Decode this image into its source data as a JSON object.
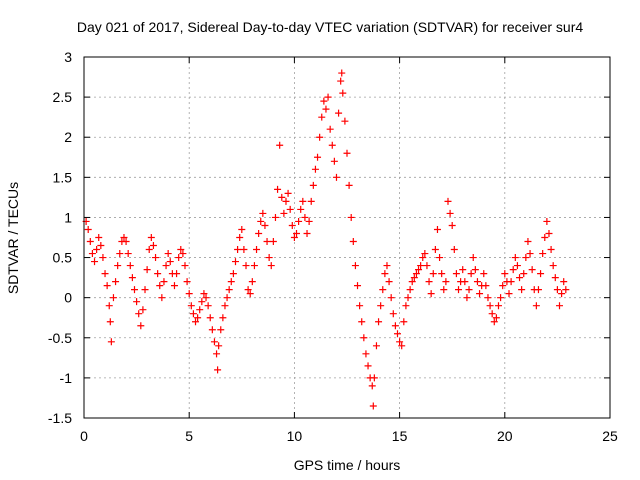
{
  "chart_data": {
    "type": "scatter",
    "title": "Day 021 of 2017, Sidereal Day-to-day VTEC variation (SDTVAR) for receiver sur4",
    "xlabel": "GPS time / hours",
    "ylabel": "SDTVAR / TECUs",
    "xlim": [
      0,
      25
    ],
    "ylim": [
      -1.5,
      3
    ],
    "xticks": [
      0,
      5,
      10,
      15,
      20,
      25
    ],
    "yticks": [
      -1.5,
      -1,
      -0.5,
      0,
      0.5,
      1,
      1.5,
      2,
      2.5,
      3
    ],
    "xtick_labels": [
      "0",
      "5",
      "10",
      "15",
      "20",
      "25"
    ],
    "ytick_labels": [
      "-1.5",
      "-1",
      "-0.5",
      "0",
      "0.5",
      "1",
      "1.5",
      "2",
      "2.5",
      "3"
    ],
    "grid": true,
    "marker": "+",
    "color": "#ff0000",
    "series": [
      {
        "name": "SDTVAR",
        "points": [
          [
            0.1,
            0.95
          ],
          [
            0.2,
            0.85
          ],
          [
            0.3,
            0.7
          ],
          [
            0.4,
            0.55
          ],
          [
            0.5,
            0.45
          ],
          [
            0.6,
            0.6
          ],
          [
            0.7,
            0.75
          ],
          [
            0.8,
            0.65
          ],
          [
            0.9,
            0.5
          ],
          [
            1.0,
            0.3
          ],
          [
            1.1,
            0.15
          ],
          [
            1.2,
            -0.1
          ],
          [
            1.25,
            -0.3
          ],
          [
            1.3,
            -0.55
          ],
          [
            1.4,
            0.0
          ],
          [
            1.5,
            0.2
          ],
          [
            1.6,
            0.4
          ],
          [
            1.7,
            0.55
          ],
          [
            1.8,
            0.7
          ],
          [
            1.9,
            0.75
          ],
          [
            2.0,
            0.7
          ],
          [
            2.1,
            0.55
          ],
          [
            2.2,
            0.4
          ],
          [
            2.3,
            0.25
          ],
          [
            2.4,
            0.1
          ],
          [
            2.5,
            -0.05
          ],
          [
            2.6,
            -0.2
          ],
          [
            2.7,
            -0.35
          ],
          [
            2.8,
            -0.15
          ],
          [
            2.9,
            0.1
          ],
          [
            3.0,
            0.35
          ],
          [
            3.1,
            0.6
          ],
          [
            3.2,
            0.75
          ],
          [
            3.3,
            0.65
          ],
          [
            3.4,
            0.5
          ],
          [
            3.5,
            0.3
          ],
          [
            3.6,
            0.15
          ],
          [
            3.7,
            0.0
          ],
          [
            3.8,
            0.2
          ],
          [
            3.9,
            0.4
          ],
          [
            4.0,
            0.55
          ],
          [
            4.1,
            0.45
          ],
          [
            4.2,
            0.3
          ],
          [
            4.3,
            0.15
          ],
          [
            4.4,
            0.3
          ],
          [
            4.5,
            0.5
          ],
          [
            4.6,
            0.6
          ],
          [
            4.7,
            0.55
          ],
          [
            4.8,
            0.4
          ],
          [
            4.9,
            0.2
          ],
          [
            5.0,
            0.05
          ],
          [
            5.1,
            -0.1
          ],
          [
            5.2,
            -0.2
          ],
          [
            5.3,
            -0.3
          ],
          [
            5.4,
            -0.25
          ],
          [
            5.5,
            -0.15
          ],
          [
            5.6,
            -0.05
          ],
          [
            5.7,
            0.05
          ],
          [
            5.8,
            0.0
          ],
          [
            5.9,
            -0.1
          ],
          [
            6.0,
            -0.25
          ],
          [
            6.1,
            -0.4
          ],
          [
            6.2,
            -0.55
          ],
          [
            6.3,
            -0.7
          ],
          [
            6.35,
            -0.9
          ],
          [
            6.4,
            -0.6
          ],
          [
            6.5,
            -0.4
          ],
          [
            6.6,
            -0.25
          ],
          [
            6.7,
            -0.1
          ],
          [
            6.8,
            0.0
          ],
          [
            6.9,
            0.1
          ],
          [
            7.0,
            0.2
          ],
          [
            7.1,
            0.3
          ],
          [
            7.2,
            0.45
          ],
          [
            7.3,
            0.6
          ],
          [
            7.4,
            0.75
          ],
          [
            7.5,
            0.85
          ],
          [
            7.6,
            0.6
          ],
          [
            7.7,
            0.4
          ],
          [
            7.8,
            0.1
          ],
          [
            7.9,
            0.05
          ],
          [
            8.0,
            0.2
          ],
          [
            8.1,
            0.4
          ],
          [
            8.2,
            0.6
          ],
          [
            8.3,
            0.8
          ],
          [
            8.4,
            0.95
          ],
          [
            8.5,
            1.05
          ],
          [
            8.6,
            0.9
          ],
          [
            8.7,
            0.7
          ],
          [
            8.8,
            0.5
          ],
          [
            8.9,
            0.4
          ],
          [
            9.0,
            0.7
          ],
          [
            9.1,
            1.0
          ],
          [
            9.2,
            1.35
          ],
          [
            9.3,
            1.9
          ],
          [
            9.4,
            1.25
          ],
          [
            9.5,
            1.05
          ],
          [
            9.6,
            1.2
          ],
          [
            9.7,
            1.3
          ],
          [
            9.8,
            1.1
          ],
          [
            9.9,
            0.9
          ],
          [
            10.0,
            0.75
          ],
          [
            10.1,
            0.8
          ],
          [
            10.2,
            0.95
          ],
          [
            10.3,
            1.1
          ],
          [
            10.4,
            1.2
          ],
          [
            10.5,
            1.0
          ],
          [
            10.6,
            0.8
          ],
          [
            10.7,
            0.95
          ],
          [
            10.8,
            1.2
          ],
          [
            10.9,
            1.4
          ],
          [
            11.0,
            1.6
          ],
          [
            11.1,
            1.75
          ],
          [
            11.2,
            2.0
          ],
          [
            11.3,
            2.25
          ],
          [
            11.4,
            2.45
          ],
          [
            11.5,
            2.35
          ],
          [
            11.6,
            2.5
          ],
          [
            11.7,
            2.1
          ],
          [
            11.8,
            1.9
          ],
          [
            11.9,
            1.7
          ],
          [
            12.0,
            1.5
          ],
          [
            12.1,
            2.3
          ],
          [
            12.2,
            2.7
          ],
          [
            12.25,
            2.8
          ],
          [
            12.3,
            2.55
          ],
          [
            12.4,
            2.2
          ],
          [
            12.5,
            1.8
          ],
          [
            12.6,
            1.4
          ],
          [
            12.7,
            1.0
          ],
          [
            12.8,
            0.7
          ],
          [
            12.9,
            0.4
          ],
          [
            13.0,
            0.15
          ],
          [
            13.1,
            -0.1
          ],
          [
            13.2,
            -0.3
          ],
          [
            13.3,
            -0.5
          ],
          [
            13.4,
            -0.7
          ],
          [
            13.5,
            -0.85
          ],
          [
            13.6,
            -1.0
          ],
          [
            13.7,
            -1.1
          ],
          [
            13.75,
            -1.35
          ],
          [
            13.8,
            -1.0
          ],
          [
            13.9,
            -0.6
          ],
          [
            14.0,
            -0.3
          ],
          [
            14.1,
            -0.1
          ],
          [
            14.2,
            0.1
          ],
          [
            14.3,
            0.3
          ],
          [
            14.4,
            0.4
          ],
          [
            14.5,
            0.2
          ],
          [
            14.6,
            0.0
          ],
          [
            14.7,
            -0.2
          ],
          [
            14.8,
            -0.35
          ],
          [
            14.9,
            -0.45
          ],
          [
            15.0,
            -0.55
          ],
          [
            15.1,
            -0.6
          ],
          [
            15.2,
            -0.3
          ],
          [
            15.3,
            -0.1
          ],
          [
            15.4,
            0.0
          ],
          [
            15.5,
            0.1
          ],
          [
            15.6,
            0.2
          ],
          [
            15.7,
            0.25
          ],
          [
            15.8,
            0.3
          ],
          [
            15.9,
            0.35
          ],
          [
            16.0,
            0.4
          ],
          [
            16.1,
            0.5
          ],
          [
            16.2,
            0.55
          ],
          [
            16.3,
            0.4
          ],
          [
            16.4,
            0.2
          ],
          [
            16.5,
            0.05
          ],
          [
            16.6,
            0.3
          ],
          [
            16.7,
            0.6
          ],
          [
            16.8,
            0.85
          ],
          [
            16.9,
            0.5
          ],
          [
            17.0,
            0.3
          ],
          [
            17.1,
            0.1
          ],
          [
            17.2,
            0.2
          ],
          [
            17.3,
            1.2
          ],
          [
            17.4,
            1.05
          ],
          [
            17.5,
            0.9
          ],
          [
            17.6,
            0.6
          ],
          [
            17.7,
            0.3
          ],
          [
            17.8,
            0.1
          ],
          [
            17.9,
            0.2
          ],
          [
            18.0,
            0.35
          ],
          [
            18.1,
            0.2
          ],
          [
            18.2,
            0.0
          ],
          [
            18.3,
            0.1
          ],
          [
            18.4,
            0.3
          ],
          [
            18.5,
            0.5
          ],
          [
            18.6,
            0.35
          ],
          [
            18.7,
            0.2
          ],
          [
            18.8,
            0.05
          ],
          [
            18.9,
            0.15
          ],
          [
            19.0,
            0.3
          ],
          [
            19.1,
            0.15
          ],
          [
            19.2,
            0.0
          ],
          [
            19.3,
            -0.1
          ],
          [
            19.4,
            -0.2
          ],
          [
            19.5,
            -0.3
          ],
          [
            19.6,
            -0.25
          ],
          [
            19.7,
            -0.1
          ],
          [
            19.8,
            0.0
          ],
          [
            19.9,
            0.15
          ],
          [
            20.0,
            0.3
          ],
          [
            20.1,
            0.2
          ],
          [
            20.2,
            0.05
          ],
          [
            20.3,
            0.2
          ],
          [
            20.4,
            0.35
          ],
          [
            20.5,
            0.5
          ],
          [
            20.6,
            0.4
          ],
          [
            20.7,
            0.25
          ],
          [
            20.8,
            0.1
          ],
          [
            20.9,
            0.3
          ],
          [
            21.0,
            0.5
          ],
          [
            21.1,
            0.7
          ],
          [
            21.2,
            0.55
          ],
          [
            21.3,
            0.35
          ],
          [
            21.4,
            0.1
          ],
          [
            21.5,
            -0.1
          ],
          [
            21.6,
            0.1
          ],
          [
            21.7,
            0.3
          ],
          [
            21.8,
            0.55
          ],
          [
            21.9,
            0.75
          ],
          [
            22.0,
            0.95
          ],
          [
            22.1,
            0.8
          ],
          [
            22.2,
            0.6
          ],
          [
            22.3,
            0.4
          ],
          [
            22.4,
            0.25
          ],
          [
            22.5,
            0.1
          ],
          [
            22.6,
            -0.1
          ],
          [
            22.7,
            0.05
          ],
          [
            22.8,
            0.2
          ],
          [
            22.9,
            0.1
          ]
        ]
      }
    ]
  }
}
